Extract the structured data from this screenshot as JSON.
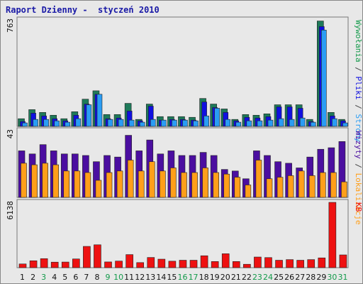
{
  "title": "Raport Dzienny -  styczeń 2010",
  "colors": {
    "visits": "#1e7a5a",
    "pages": "#1010e0",
    "files": "#2a9df4",
    "locations": "#4b0ea0",
    "visitors": "#ff9f1a",
    "kb": "#ee1111",
    "weekday_label": "#111111",
    "weekend_label": "#139a4a"
  },
  "chart_data": [
    {
      "type": "bar",
      "panel": "top",
      "max_label": "763",
      "ylim": [
        0,
        763
      ],
      "categories": [
        "1",
        "2",
        "3",
        "4",
        "5",
        "6",
        "7",
        "8",
        "9",
        "10",
        "11",
        "12",
        "13",
        "14",
        "15",
        "16",
        "17",
        "18",
        "19",
        "20",
        "21",
        "22",
        "23",
        "24",
        "25",
        "26",
        "27",
        "28",
        "29",
        "30",
        "31"
      ],
      "weekend": [
        3,
        9,
        10,
        16,
        17,
        23,
        24,
        30,
        31
      ],
      "side_labels": [
        {
          "text": "Wywołania",
          "color": "#139a4a"
        },
        {
          "text": " / ",
          "color": "#444444"
        },
        {
          "text": "Pliki",
          "color": "#1010e0"
        },
        {
          "text": " / ",
          "color": "#444444"
        },
        {
          "text": "Strony",
          "color": "#2a9df4"
        }
      ],
      "series": [
        {
          "key": "visits",
          "values": [
            55,
            120,
            100,
            80,
            55,
            105,
            195,
            255,
            85,
            85,
            165,
            50,
            160,
            70,
            70,
            70,
            65,
            200,
            160,
            125,
            50,
            85,
            80,
            90,
            155,
            155,
            155,
            50,
            755,
            100,
            50
          ]
        },
        {
          "key": "pages",
          "values": [
            35,
            95,
            75,
            55,
            40,
            80,
            160,
            230,
            55,
            60,
            110,
            40,
            145,
            45,
            50,
            50,
            45,
            175,
            135,
            100,
            40,
            65,
            60,
            70,
            140,
            140,
            130,
            35,
            715,
            75,
            40
          ]
        },
        {
          "key": "files",
          "values": [
            25,
            50,
            50,
            40,
            30,
            55,
            155,
            230,
            50,
            50,
            45,
            30,
            50,
            45,
            45,
            45,
            40,
            75,
            130,
            50,
            30,
            40,
            40,
            45,
            55,
            50,
            60,
            30,
            690,
            55,
            25
          ]
        }
      ]
    },
    {
      "type": "bar",
      "panel": "middle",
      "max_label": "43",
      "ylim": [
        0,
        43
      ],
      "categories": [
        "1",
        "2",
        "3",
        "4",
        "5",
        "6",
        "7",
        "8",
        "9",
        "10",
        "11",
        "12",
        "13",
        "14",
        "15",
        "16",
        "17",
        "18",
        "19",
        "20",
        "21",
        "22",
        "23",
        "24",
        "25",
        "26",
        "27",
        "28",
        "29",
        "30",
        "31"
      ],
      "side_labels": [
        {
          "text": "Wizyty",
          "color": "#4b0ea0"
        },
        {
          "text": " / ",
          "color": "#444444"
        },
        {
          "text": "Lokalizacje",
          "color": "#ff9f1a"
        }
      ],
      "series": [
        {
          "key": "locations",
          "values": [
            30,
            28,
            34,
            30,
            28,
            28,
            27,
            23,
            27,
            26,
            40,
            30,
            37,
            28,
            30,
            27,
            27,
            29,
            27,
            18,
            17,
            12,
            30,
            27,
            23,
            22,
            19,
            26,
            31,
            32,
            36
          ]
        },
        {
          "key": "visitors",
          "values": [
            22,
            21,
            22,
            21,
            17,
            17,
            16,
            11,
            16,
            17,
            24,
            17,
            23,
            17,
            19,
            16,
            16,
            19,
            16,
            15,
            13,
            8,
            24,
            12,
            13,
            14,
            17,
            14,
            16,
            16,
            10
          ]
        }
      ]
    },
    {
      "type": "bar",
      "panel": "bottom",
      "max_label": "6138",
      "ylim": [
        0,
        6138
      ],
      "categories": [
        "1",
        "2",
        "3",
        "4",
        "5",
        "6",
        "7",
        "8",
        "9",
        "10",
        "11",
        "12",
        "13",
        "14",
        "15",
        "16",
        "17",
        "18",
        "19",
        "20",
        "21",
        "22",
        "23",
        "24",
        "25",
        "26",
        "27",
        "28",
        "29",
        "30",
        "31"
      ],
      "side_labels": [
        {
          "text": "KB",
          "color": "#ee1111"
        }
      ],
      "series": [
        {
          "key": "kb",
          "values": [
            350,
            650,
            850,
            520,
            530,
            820,
            2000,
            2150,
            540,
            620,
            1230,
            480,
            960,
            800,
            610,
            700,
            700,
            1120,
            580,
            1310,
            580,
            320,
            1000,
            950,
            700,
            760,
            700,
            760,
            920,
            6138,
            1200
          ]
        }
      ]
    }
  ]
}
